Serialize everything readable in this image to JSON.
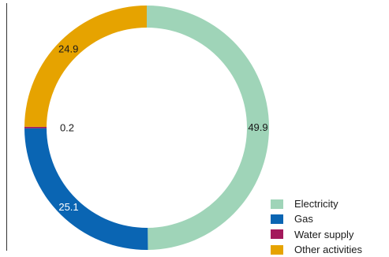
{
  "chart_data": {
    "type": "pie",
    "title": "",
    "categories": [
      "Electricity",
      "Gas",
      "Water supply",
      "Other activities"
    ],
    "values": [
      49.9,
      25.1,
      0.2,
      24.9
    ],
    "colors": [
      "#9fd4b8",
      "#0a65b3",
      "#a3195b",
      "#e6a300"
    ],
    "data_labels": [
      "49.9",
      "25.1",
      "0.2",
      "24.9"
    ],
    "legend_position": "bottom-right",
    "style": "donut"
  }
}
